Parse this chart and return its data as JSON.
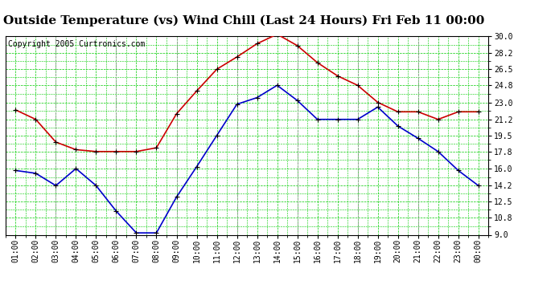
{
  "title": "Outside Temperature (vs) Wind Chill (Last 24 Hours) Fri Feb 11 00:00",
  "copyright": "Copyright 2005 Curtronics.com",
  "x_labels": [
    "01:00",
    "02:00",
    "03:00",
    "04:00",
    "05:00",
    "06:00",
    "07:00",
    "08:00",
    "09:00",
    "10:00",
    "11:00",
    "12:00",
    "13:00",
    "14:00",
    "15:00",
    "16:00",
    "17:00",
    "18:00",
    "19:00",
    "20:00",
    "21:00",
    "22:00",
    "23:00",
    "00:00"
  ],
  "temp_red": [
    22.2,
    21.2,
    18.8,
    18.0,
    17.8,
    17.8,
    17.8,
    18.2,
    21.8,
    24.2,
    26.5,
    27.8,
    29.2,
    30.2,
    29.0,
    27.2,
    25.8,
    24.8,
    23.0,
    22.0,
    22.0,
    21.2,
    22.0,
    22.0
  ],
  "wind_blue": [
    15.8,
    15.5,
    14.2,
    16.0,
    14.2,
    11.5,
    9.2,
    9.2,
    13.0,
    16.2,
    19.5,
    22.8,
    23.5,
    24.8,
    23.2,
    21.2,
    21.2,
    21.2,
    22.5,
    20.5,
    19.2,
    17.8,
    15.8,
    14.2
  ],
  "ylim": [
    9.0,
    30.0
  ],
  "yticks": [
    9.0,
    10.8,
    12.5,
    14.2,
    16.0,
    17.8,
    19.5,
    21.2,
    23.0,
    24.8,
    26.5,
    28.2,
    30.0
  ],
  "bg_color": "#ffffff",
  "plot_bg": "#ffffff",
  "grid_color": "#00cc00",
  "red_color": "#cc0000",
  "blue_color": "#0000cc",
  "title_fontsize": 11,
  "copyright_fontsize": 7,
  "tick_fontsize": 7
}
